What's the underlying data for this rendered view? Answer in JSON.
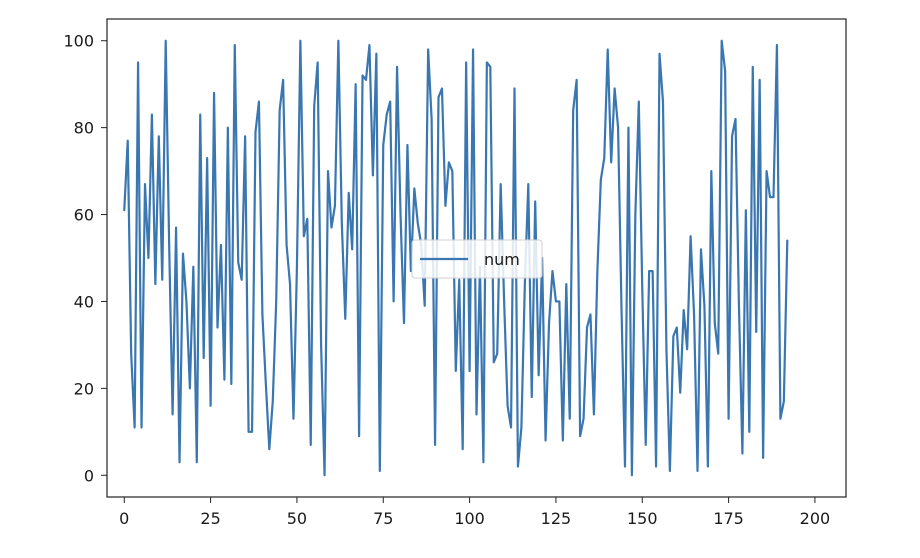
{
  "chart_data": {
    "type": "line",
    "title": "",
    "xlabel": "",
    "ylabel": "",
    "xlim": [
      -5,
      209
    ],
    "ylim": [
      -5,
      105
    ],
    "x_ticks": [
      0,
      25,
      50,
      75,
      100,
      125,
      150,
      175,
      200
    ],
    "y_ticks": [
      0,
      20,
      40,
      60,
      80,
      100
    ],
    "grid": false,
    "legend_position": "center",
    "series": [
      {
        "name": "num",
        "color": "#3a76b0",
        "values": [
          61,
          77,
          28,
          11,
          95,
          11,
          67,
          50,
          83,
          44,
          78,
          45,
          100,
          53,
          14,
          57,
          3,
          51,
          40,
          20,
          48,
          3,
          83,
          27,
          73,
          16,
          88,
          34,
          53,
          22,
          80,
          21,
          99,
          49,
          45,
          78,
          10,
          10,
          79,
          86,
          37,
          21,
          6,
          17,
          40,
          84,
          91,
          53,
          44,
          13,
          48,
          100,
          55,
          59,
          7,
          85,
          95,
          30,
          0,
          70,
          57,
          62,
          100,
          58,
          36,
          65,
          52,
          90,
          9,
          92,
          91,
          99,
          69,
          97,
          1,
          76,
          83,
          86,
          40,
          94,
          60,
          35,
          76,
          47,
          66,
          58,
          53,
          39,
          98,
          82,
          7,
          87,
          89,
          62,
          72,
          70,
          24,
          45,
          6,
          95,
          24,
          98,
          14,
          48,
          3,
          95,
          94,
          26,
          28,
          67,
          40,
          16,
          11,
          89,
          2,
          11,
          44,
          67,
          18,
          63,
          23,
          50,
          8,
          35,
          47,
          40,
          40,
          8,
          44,
          13,
          84,
          91,
          9,
          13,
          34,
          37,
          14,
          47,
          68,
          73,
          98,
          72,
          89,
          80,
          38,
          2,
          80,
          0,
          60,
          86,
          43,
          7,
          47,
          47,
          2,
          97,
          86,
          29,
          1,
          32,
          34,
          19,
          38,
          29,
          55,
          37,
          1,
          52,
          39,
          2,
          70,
          35,
          28,
          100,
          93,
          13,
          78,
          82,
          39,
          5,
          61,
          10,
          94,
          33,
          91,
          4,
          70,
          64,
          64,
          99,
          13,
          17,
          54
        ]
      }
    ]
  }
}
